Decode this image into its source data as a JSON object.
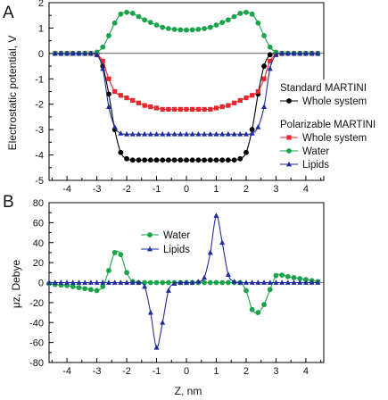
{
  "chart_data": [
    {
      "panel_label": "A",
      "type": "line",
      "xlabel": "",
      "ylabel": "Electrostatic potential, V",
      "xlim": [
        -4.6,
        4.6
      ],
      "ylim": [
        -5,
        2
      ],
      "xticks": [
        -4,
        -3,
        -2,
        -1,
        0,
        1,
        2,
        3,
        4
      ],
      "yticks": [
        -5,
        -4,
        -3,
        -2,
        -1,
        0,
        1,
        2
      ],
      "legend": {
        "placement": "right",
        "groups": [
          {
            "title": "Standard MARTINI",
            "entries": [
              "Whole system"
            ]
          },
          {
            "title": "Polarizable MARTINI",
            "entries": [
              "Whole system",
              "Water",
              "Lipids"
            ]
          }
        ]
      },
      "series": [
        {
          "name": "Whole system",
          "group": "Standard MARTINI",
          "color": "#000000",
          "marker": "circle",
          "x": [
            -4.4,
            -4.2,
            -4.0,
            -3.8,
            -3.6,
            -3.4,
            -3.2,
            -3.0,
            -2.8,
            -2.6,
            -2.4,
            -2.2,
            -2.0,
            -1.8,
            -1.6,
            -1.4,
            -1.2,
            -1.0,
            -0.8,
            -0.6,
            -0.4,
            -0.2,
            0.0,
            0.2,
            0.4,
            0.6,
            0.8,
            1.0,
            1.2,
            1.4,
            1.6,
            1.8,
            2.0,
            2.2,
            2.4,
            2.6,
            2.8,
            3.0,
            3.2,
            3.4,
            3.6,
            3.8,
            4.0,
            4.2,
            4.4
          ],
          "y": [
            0,
            0,
            0,
            0,
            0,
            0,
            0,
            -0.05,
            -0.5,
            -1.6,
            -3.0,
            -3.9,
            -4.15,
            -4.2,
            -4.2,
            -4.2,
            -4.2,
            -4.2,
            -4.2,
            -4.2,
            -4.2,
            -4.2,
            -4.2,
            -4.2,
            -4.2,
            -4.2,
            -4.2,
            -4.2,
            -4.2,
            -4.2,
            -4.2,
            -4.15,
            -3.9,
            -3.0,
            -1.6,
            -0.5,
            -0.05,
            0,
            0,
            0,
            0,
            0,
            0,
            0,
            0
          ]
        },
        {
          "name": "Whole system",
          "group": "Polarizable MARTINI",
          "color": "#e8262b",
          "marker": "square",
          "x": [
            -4.4,
            -4.2,
            -4.0,
            -3.8,
            -3.6,
            -3.4,
            -3.2,
            -3.0,
            -2.8,
            -2.6,
            -2.4,
            -2.2,
            -2.0,
            -1.8,
            -1.6,
            -1.4,
            -1.2,
            -1.0,
            -0.8,
            -0.6,
            -0.4,
            -0.2,
            0.0,
            0.2,
            0.4,
            0.6,
            0.8,
            1.0,
            1.2,
            1.4,
            1.6,
            1.8,
            2.0,
            2.2,
            2.4,
            2.6,
            2.8,
            3.0,
            3.2,
            3.4,
            3.6,
            3.8,
            4.0,
            4.2,
            4.4
          ],
          "y": [
            0,
            0,
            0,
            0,
            0,
            0,
            0,
            -0.05,
            -0.3,
            -1.0,
            -1.5,
            -1.65,
            -1.75,
            -1.85,
            -1.95,
            -2.05,
            -2.1,
            -2.15,
            -2.2,
            -2.2,
            -2.2,
            -2.2,
            -2.2,
            -2.2,
            -2.2,
            -2.2,
            -2.2,
            -2.15,
            -2.1,
            -2.05,
            -1.95,
            -1.85,
            -1.75,
            -1.65,
            -1.5,
            -1.0,
            -0.3,
            -0.05,
            0,
            0,
            0,
            0,
            0,
            0,
            0
          ]
        },
        {
          "name": "Water",
          "group": "Polarizable MARTINI",
          "color": "#1aa34a",
          "marker": "circle",
          "x": [
            -4.4,
            -4.2,
            -4.0,
            -3.8,
            -3.6,
            -3.4,
            -3.2,
            -3.0,
            -2.8,
            -2.6,
            -2.4,
            -2.2,
            -2.0,
            -1.8,
            -1.6,
            -1.4,
            -1.2,
            -1.0,
            -0.8,
            -0.6,
            -0.4,
            -0.2,
            0.0,
            0.2,
            0.4,
            0.6,
            0.8,
            1.0,
            1.2,
            1.4,
            1.6,
            1.8,
            2.0,
            2.2,
            2.4,
            2.6,
            2.8,
            3.0,
            3.2,
            3.4,
            3.6,
            3.8,
            4.0,
            4.2,
            4.4
          ],
          "y": [
            0,
            0,
            0,
            0,
            0,
            0,
            0,
            0.05,
            0.25,
            0.7,
            1.2,
            1.55,
            1.62,
            1.58,
            1.45,
            1.32,
            1.22,
            1.12,
            1.03,
            0.98,
            0.95,
            0.93,
            0.92,
            0.93,
            0.95,
            0.98,
            1.03,
            1.12,
            1.22,
            1.32,
            1.45,
            1.58,
            1.62,
            1.55,
            1.2,
            0.7,
            0.25,
            0.05,
            0,
            0,
            0,
            0,
            0,
            0,
            0
          ]
        },
        {
          "name": "Lipids",
          "group": "Polarizable MARTINI",
          "color": "#1f2c9c",
          "marker": "triangle",
          "x": [
            -4.4,
            -4.2,
            -4.0,
            -3.8,
            -3.6,
            -3.4,
            -3.2,
            -3.0,
            -2.8,
            -2.6,
            -2.4,
            -2.2,
            -2.0,
            -1.8,
            -1.6,
            -1.4,
            -1.2,
            -1.0,
            -0.8,
            -0.6,
            -0.4,
            -0.2,
            0.0,
            0.2,
            0.4,
            0.6,
            0.8,
            1.0,
            1.2,
            1.4,
            1.6,
            1.8,
            2.0,
            2.2,
            2.4,
            2.6,
            2.8,
            3.0,
            3.2,
            3.4,
            3.6,
            3.8,
            4.0,
            4.2,
            4.4
          ],
          "y": [
            0,
            0,
            0,
            0,
            0,
            0,
            0,
            -0.05,
            -0.6,
            -2.1,
            -2.9,
            -3.15,
            -3.18,
            -3.18,
            -3.18,
            -3.18,
            -3.18,
            -3.18,
            -3.18,
            -3.18,
            -3.18,
            -3.18,
            -3.18,
            -3.18,
            -3.18,
            -3.18,
            -3.18,
            -3.18,
            -3.18,
            -3.18,
            -3.18,
            -3.18,
            -3.18,
            -3.15,
            -2.9,
            -2.1,
            -0.6,
            -0.05,
            0,
            0,
            0,
            0,
            0,
            0,
            0
          ]
        }
      ]
    },
    {
      "panel_label": "B",
      "type": "line",
      "xlabel": "Z, nm",
      "ylabel": "μz, Debye",
      "xlim": [
        -4.6,
        4.6
      ],
      "ylim": [
        -80,
        80
      ],
      "xticks": [
        -4,
        -3,
        -2,
        -1,
        0,
        1,
        2,
        3,
        4
      ],
      "yticks": [
        -80,
        -60,
        -40,
        -20,
        0,
        20,
        40,
        60,
        80
      ],
      "legend": {
        "placement": "top-left",
        "entries": [
          "Water",
          "Lipids"
        ]
      },
      "series": [
        {
          "name": "Water",
          "color": "#1aa34a",
          "marker": "circle",
          "x": [
            -4.6,
            -4.4,
            -4.2,
            -4.0,
            -3.8,
            -3.6,
            -3.4,
            -3.2,
            -3.0,
            -2.8,
            -2.6,
            -2.4,
            -2.2,
            -2.0,
            -1.8,
            -1.6,
            -1.4,
            -1.2,
            -1.0,
            -0.8,
            -0.6,
            -0.4,
            -0.2,
            0.0,
            0.2,
            0.4,
            0.6,
            0.8,
            1.0,
            1.2,
            1.4,
            1.6,
            1.8,
            2.0,
            2.2,
            2.4,
            2.6,
            2.8,
            3.0,
            3.2,
            3.4,
            3.6,
            3.8,
            4.0,
            4.2,
            4.4
          ],
          "y": [
            -1,
            -2,
            -2.5,
            -3,
            -4,
            -5,
            -6,
            -7,
            -8,
            -4,
            12,
            30,
            28,
            10,
            1,
            0,
            0,
            0,
            0,
            0,
            0,
            0,
            0,
            0,
            0,
            0,
            0,
            0,
            0,
            0,
            0,
            0,
            0,
            -8,
            -27,
            -30,
            -22,
            -7,
            7,
            7.5,
            6,
            5,
            4,
            3,
            2,
            1
          ]
        },
        {
          "name": "Lipids",
          "color": "#1f2c9c",
          "marker": "triangle",
          "x": [
            -4.6,
            -4.4,
            -4.2,
            -4.0,
            -3.8,
            -3.6,
            -3.4,
            -3.2,
            -3.0,
            -2.8,
            -2.6,
            -2.4,
            -2.2,
            -2.0,
            -1.8,
            -1.6,
            -1.4,
            -1.2,
            -1.0,
            -0.8,
            -0.6,
            -0.4,
            -0.2,
            0.0,
            0.2,
            0.4,
            0.6,
            0.8,
            1.0,
            1.2,
            1.4,
            1.6,
            1.8,
            2.0,
            2.2,
            2.4,
            2.6,
            2.8,
            3.0,
            3.2,
            3.4,
            3.6,
            3.8,
            4.0,
            4.2,
            4.4
          ],
          "y": [
            0,
            0,
            0,
            0,
            0,
            0,
            0,
            0,
            0,
            0,
            0,
            0,
            0,
            0,
            0,
            0,
            -4,
            -30,
            -65,
            -40,
            -8,
            -1,
            0,
            0,
            0,
            1,
            5,
            30,
            67,
            40,
            8,
            1,
            0,
            0,
            0,
            0,
            0,
            0,
            0,
            0,
            0,
            0,
            0,
            0,
            0,
            0
          ]
        }
      ]
    }
  ]
}
